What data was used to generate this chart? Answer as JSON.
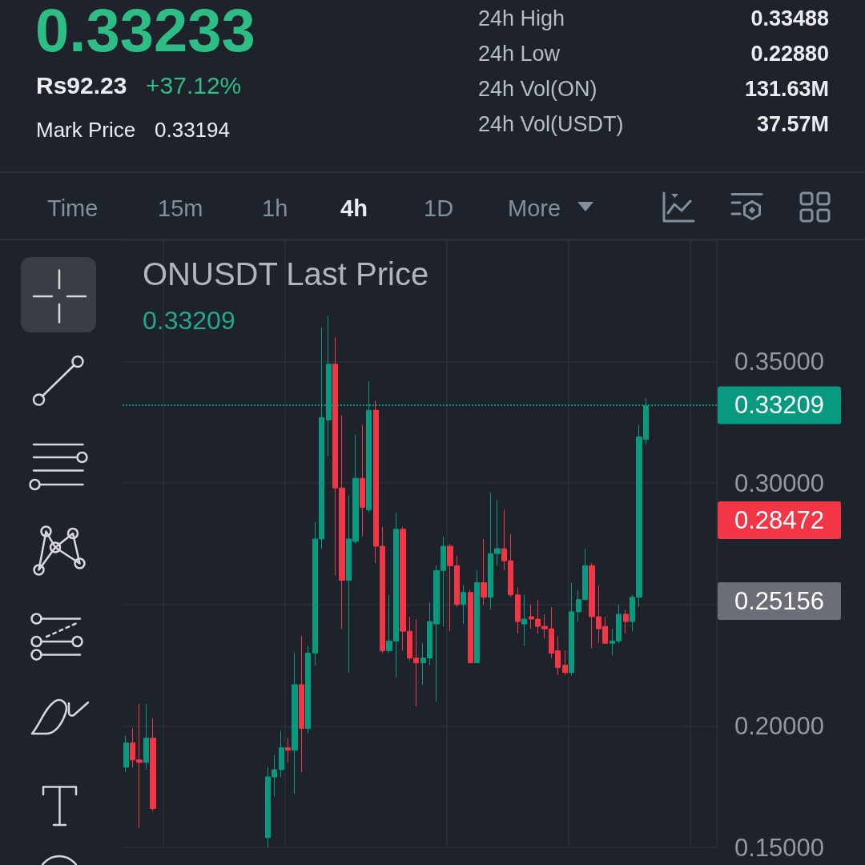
{
  "chart_data": {
    "type": "candlestick",
    "title": "ONUSDT Last Price",
    "subtitle": "0.33209",
    "categories": [
      null,
      null,
      null,
      null,
      null,
      null,
      null,
      null,
      null,
      null,
      null,
      null,
      null,
      null,
      null,
      null,
      null,
      null,
      null,
      null,
      null,
      null,
      null,
      null,
      null,
      null,
      null,
      null,
      null,
      null,
      null,
      null,
      null,
      null,
      null,
      null,
      null,
      null,
      null,
      null,
      null,
      null,
      null,
      null,
      null,
      null,
      null,
      null,
      null,
      null,
      null,
      null,
      null,
      null,
      null,
      null,
      null,
      null,
      null,
      null,
      null,
      null,
      null,
      null,
      null,
      null,
      null,
      null,
      null,
      null,
      null,
      null,
      null,
      null,
      null,
      null,
      null,
      null,
      null,
      null,
      null,
      null,
      null,
      null,
      null,
      null,
      null,
      null
    ],
    "ohlc": [
      [
        0.183,
        0.196,
        0.181,
        0.193
      ],
      [
        0.193,
        0.199,
        0.183,
        0.186
      ],
      [
        0.186,
        0.209,
        0.158,
        0.185
      ],
      [
        0.185,
        0.209,
        0.182,
        0.195
      ],
      [
        0.195,
        0.203,
        0.165,
        0.166
      ],
      null,
      null,
      null,
      null,
      null,
      null,
      null,
      null,
      null,
      null,
      null,
      null,
      null,
      null,
      null,
      null,
      [
        0.154,
        0.183,
        0.15,
        0.179
      ],
      [
        0.179,
        0.188,
        0.171,
        0.182
      ],
      [
        0.182,
        0.198,
        0.179,
        0.191
      ],
      [
        0.191,
        0.195,
        0.185,
        0.19
      ],
      [
        0.19,
        0.23,
        0.172,
        0.217
      ],
      [
        0.217,
        0.237,
        0.181,
        0.199
      ],
      [
        0.199,
        0.233,
        0.197,
        0.23
      ],
      [
        0.23,
        0.284,
        0.225,
        0.277
      ],
      [
        0.277,
        0.364,
        0.273,
        0.327
      ],
      [
        0.326,
        0.369,
        0.311,
        0.349
      ],
      [
        0.349,
        0.36,
        0.262,
        0.298
      ],
      [
        0.298,
        0.328,
        0.24,
        0.26
      ],
      [
        0.26,
        0.295,
        0.222,
        0.277
      ],
      [
        0.276,
        0.32,
        0.275,
        0.302
      ],
      [
        0.302,
        0.324,
        0.278,
        0.29
      ],
      [
        0.289,
        0.342,
        0.288,
        0.33
      ],
      [
        0.33,
        0.334,
        0.267,
        0.274
      ],
      [
        0.274,
        0.282,
        0.23,
        0.231
      ],
      [
        0.231,
        0.254,
        0.23,
        0.235
      ],
      [
        0.235,
        0.288,
        0.22,
        0.281
      ],
      [
        0.281,
        0.282,
        0.231,
        0.239
      ],
      [
        0.239,
        0.245,
        0.227,
        0.228
      ],
      [
        0.228,
        0.244,
        0.208,
        0.226
      ],
      [
        0.226,
        0.234,
        0.217,
        0.228
      ],
      [
        0.228,
        0.251,
        0.225,
        0.243
      ],
      [
        0.242,
        0.266,
        0.21,
        0.264
      ],
      [
        0.264,
        0.278,
        0.241,
        0.274
      ],
      [
        0.274,
        0.275,
        0.239,
        0.266
      ],
      [
        0.266,
        0.27,
        0.249,
        0.25
      ],
      [
        0.25,
        0.258,
        0.242,
        0.255
      ],
      [
        0.255,
        0.256,
        0.226,
        0.226
      ],
      [
        0.226,
        0.264,
        0.226,
        0.259
      ],
      [
        0.259,
        0.277,
        0.25,
        0.253
      ],
      [
        0.253,
        0.296,
        0.248,
        0.271
      ],
      [
        0.271,
        0.293,
        0.266,
        0.273
      ],
      [
        0.273,
        0.289,
        0.264,
        0.268
      ],
      [
        0.268,
        0.279,
        0.253,
        0.254
      ],
      [
        0.254,
        0.257,
        0.238,
        0.243
      ],
      [
        0.242,
        0.254,
        0.233,
        0.244
      ],
      [
        0.245,
        0.25,
        0.24,
        0.244
      ],
      [
        0.244,
        0.252,
        0.238,
        0.241
      ],
      [
        0.241,
        0.246,
        0.236,
        0.24
      ],
      [
        0.24,
        0.249,
        0.228,
        0.23
      ],
      [
        0.231,
        0.237,
        0.221,
        0.224
      ],
      [
        0.225,
        0.231,
        0.221,
        0.222
      ],
      [
        0.222,
        0.259,
        0.221,
        0.247
      ],
      [
        0.247,
        0.256,
        0.243,
        0.252
      ],
      [
        0.252,
        0.273,
        0.252,
        0.266
      ],
      [
        0.266,
        0.267,
        0.232,
        0.245
      ],
      [
        0.245,
        0.258,
        0.234,
        0.24
      ],
      [
        0.241,
        0.245,
        0.234,
        0.234
      ],
      [
        0.234,
        0.24,
        0.229,
        0.235
      ],
      [
        0.235,
        0.25,
        0.234,
        0.246
      ],
      [
        0.246,
        0.248,
        0.238,
        0.243
      ],
      [
        0.243,
        0.254,
        0.239,
        0.253
      ],
      [
        0.253,
        0.324,
        0.249,
        0.319
      ],
      [
        0.318,
        0.335,
        0.316,
        0.332
      ],
      null,
      null,
      null,
      null,
      null,
      null,
      null,
      null,
      null,
      null
    ],
    "colors": [
      "#089981",
      "#f23645",
      "#f23645",
      "#089981",
      "#f23645",
      null,
      null,
      null,
      null,
      null,
      null,
      null,
      null,
      null,
      null,
      null,
      null,
      null,
      null,
      null,
      null,
      "#089981",
      "#089981",
      "#089981",
      "#f23645",
      "#089981",
      "#f23645",
      "#089981",
      "#089981",
      "#089981",
      "#089981",
      "#f23645",
      "#f23645",
      "#089981",
      "#089981",
      "#f23645",
      "#089981",
      "#f23645",
      "#f23645",
      "#089981",
      "#089981",
      "#f23645",
      "#f23645",
      "#f23645",
      "#089981",
      "#089981",
      "#089981",
      "#089981",
      "#f23645",
      "#f23645",
      "#089981",
      "#f23645",
      "#089981",
      "#f23645",
      "#089981",
      "#089981",
      "#f23645",
      "#f23645",
      "#f23645",
      "#089981",
      "#f23645",
      "#f23645",
      "#f23645",
      "#f23645",
      "#f23645",
      "#f23645",
      "#089981",
      "#089981",
      "#089981",
      "#f23645",
      "#f23645",
      "#f23645",
      "#089981",
      "#089981",
      "#f23645",
      "#089981",
      "#089981",
      "#089981",
      null,
      null,
      null,
      null,
      null,
      null,
      null,
      null,
      null,
      null
    ],
    "ylim": [
      0.15,
      0.4
    ],
    "yticks": [
      {
        "value": 0.15,
        "label": "0.15000"
      },
      {
        "value": 0.2,
        "label": "0.20000"
      },
      {
        "value": 0.25,
        "label": null
      },
      {
        "value": 0.3,
        "label": "0.30000"
      },
      {
        "value": 0.35,
        "label": "0.35000"
      }
    ],
    "grid": true,
    "tick_labels": "y",
    "ref_lines": [
      {
        "axis": "y",
        "value": 0.33209,
        "label": "0.33209",
        "color": "#089981",
        "line_style": "dotted"
      }
    ],
    "annotations": [
      "0.33233",
      "Rs92.23",
      "+37.12%",
      "Mark Price",
      "0.33194",
      "24h High",
      "0.33488",
      "24h Low",
      "0.22880",
      "24h Vol(ON)",
      "131.63M",
      "24h Vol(USDT)",
      "37.57M",
      "Time",
      "15m",
      "1h",
      "4h",
      "1D",
      "More",
      "0.28472",
      "0.25156"
    ]
  }
}
